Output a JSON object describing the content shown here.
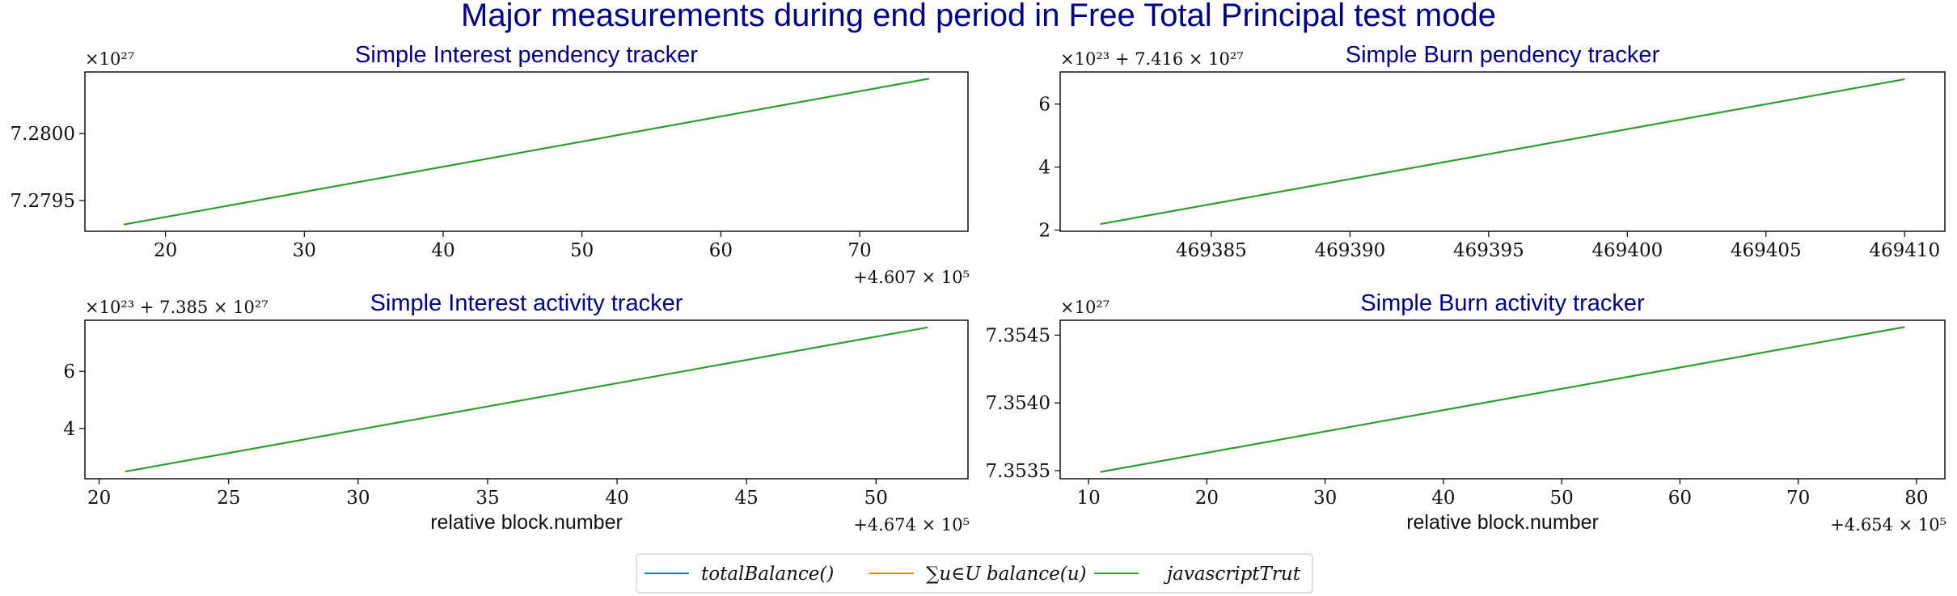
{
  "figure": {
    "suptitle": "Major measurements during end period in Free Total Principal test mode"
  },
  "legend": {
    "position": "bottom-center",
    "entries": [
      {
        "label": "totalBalance()",
        "color": "#1f77b4"
      },
      {
        "label": "∑u∈U balance(u)",
        "color": "#ff7f0e"
      },
      {
        "label": "javascriptTrut",
        "color": "#2ca02c"
      }
    ]
  },
  "chart_data": [
    {
      "type": "line",
      "title": "Simple Interest pendency tracker",
      "xlabel": "",
      "ylabel": "",
      "x_ticks": [
        "20",
        "30",
        "40",
        "50",
        "60",
        "70"
      ],
      "x_tick_values": [
        20,
        30,
        40,
        50,
        60,
        70
      ],
      "x_offset_text": "+4.607 × 10⁵",
      "xlim": [
        14.2,
        77.8
      ],
      "y_ticks": [
        "7.2795",
        "7.2800"
      ],
      "y_tick_values": [
        7.2795,
        7.28
      ],
      "y_offset_text": "×10²⁷",
      "ylim": [
        7.27927,
        7.28046
      ],
      "grid": false,
      "series": [
        {
          "name": "javascriptTrut",
          "color": "#2ca02c",
          "x": [
            17,
            75
          ],
          "y": [
            7.27932,
            7.28041
          ]
        }
      ]
    },
    {
      "type": "line",
      "title": "Simple Burn pendency tracker",
      "xlabel": "",
      "ylabel": "",
      "x_ticks": [
        "469385",
        "469390",
        "469395",
        "469400",
        "469405",
        "469410"
      ],
      "x_tick_values": [
        469385,
        469390,
        469395,
        469400,
        469405,
        469410
      ],
      "x_offset_text": "",
      "xlim": [
        469379.55,
        469411.45
      ],
      "y_ticks": [
        "2",
        "4",
        "6"
      ],
      "y_tick_values": [
        2,
        4,
        6
      ],
      "y_offset_text": "×10²³ + 7.416 × 10²⁷",
      "ylim": [
        1.96,
        7.02
      ],
      "grid": false,
      "series": [
        {
          "name": "javascriptTrut",
          "color": "#2ca02c",
          "x": [
            469381,
            469410
          ],
          "y": [
            2.19,
            6.79
          ]
        }
      ]
    },
    {
      "type": "line",
      "title": "Simple Interest activity tracker",
      "xlabel": "relative block.number",
      "ylabel": "",
      "x_ticks": [
        "20",
        "25",
        "30",
        "35",
        "40",
        "45",
        "50"
      ],
      "x_tick_values": [
        20,
        25,
        30,
        35,
        40,
        45,
        50
      ],
      "x_offset_text": "+4.674 × 10⁵",
      "xlim": [
        19.45,
        53.55
      ],
      "y_ticks": [
        "4",
        "6"
      ],
      "y_tick_values": [
        4,
        6
      ],
      "y_offset_text": "×10²³ + 7.385 × 10²⁷",
      "ylim": [
        2.24,
        7.79
      ],
      "grid": false,
      "series": [
        {
          "name": "javascriptTrut",
          "color": "#2ca02c",
          "x": [
            21,
            52
          ],
          "y": [
            2.49,
            7.54
          ]
        }
      ]
    },
    {
      "type": "line",
      "title": "Simple Burn activity tracker",
      "xlabel": "relative block.number",
      "ylabel": "",
      "x_ticks": [
        "10",
        "20",
        "30",
        "40",
        "50",
        "60",
        "70",
        "80"
      ],
      "x_tick_values": [
        10,
        20,
        30,
        40,
        50,
        60,
        70,
        80
      ],
      "x_offset_text": "+4.654 × 10⁵",
      "xlim": [
        7.6,
        82.4
      ],
      "y_ticks": [
        "7.3535",
        "7.3540",
        "7.3545"
      ],
      "y_tick_values": [
        7.3535,
        7.354,
        7.3545
      ],
      "y_offset_text": "×10²⁷",
      "ylim": [
        7.35344,
        7.35461
      ],
      "grid": false,
      "series": [
        {
          "name": "javascriptTrut",
          "color": "#2ca02c",
          "x": [
            11,
            79
          ],
          "y": [
            7.35349,
            7.35456
          ]
        }
      ]
    }
  ]
}
